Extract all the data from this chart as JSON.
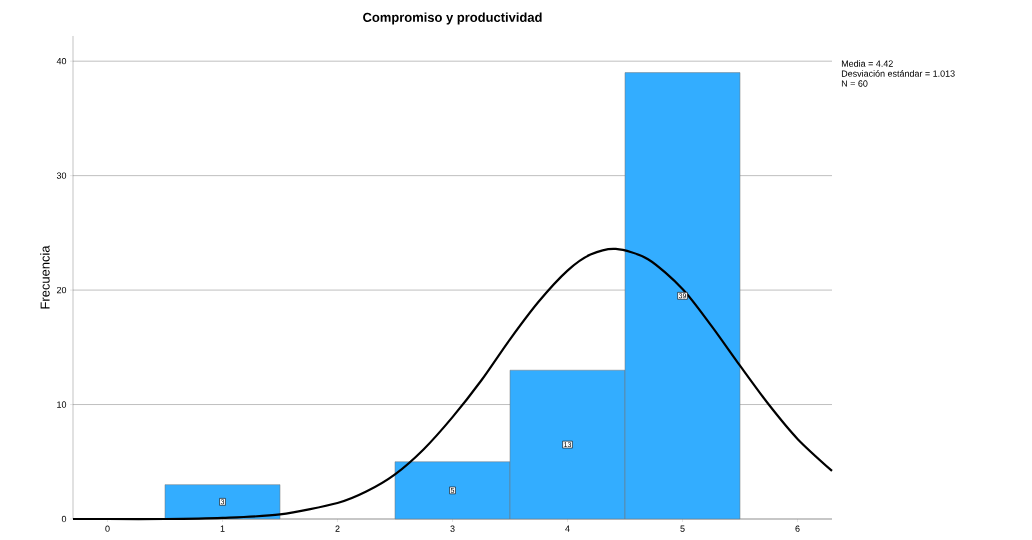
{
  "chart_data": {
    "type": "histogram",
    "title": "Compromiso y productividad",
    "ylabel": "Frecuencia",
    "bins": [
      0.5,
      1.5,
      2.5,
      3.5,
      4.5,
      5.5
    ],
    "values": [
      3,
      0,
      5,
      13,
      39
    ],
    "value_labels": [
      "3",
      null,
      "5",
      "13",
      "39"
    ],
    "color": "#33adff",
    "series": [
      {
        "type": "line",
        "color": "#000000",
        "x": [
          -0.3,
          0,
          0.5,
          1,
          1.5,
          2,
          2.25,
          2.5,
          2.75,
          3,
          3.25,
          3.5,
          3.75,
          4,
          4.2,
          4.42,
          4.7,
          5,
          5.25,
          5.5,
          5.75,
          6,
          6.3
        ],
        "values": [
          0,
          0,
          0,
          0.1,
          0.4,
          1.4,
          2.4,
          3.9,
          6.1,
          8.9,
          12.1,
          15.7,
          19,
          21.7,
          23.1,
          23.6,
          22.7,
          20.1,
          16.9,
          13.4,
          10,
          7,
          4.2
        ]
      }
    ],
    "xlim": [
      -0.3,
      6.3
    ],
    "ylim": [
      0,
      42.2
    ],
    "xticks": [
      0,
      1,
      2,
      3,
      4,
      5,
      6
    ],
    "yticks": [
      0,
      10,
      20,
      30,
      40
    ],
    "grid": "y",
    "annotations": [
      "Media = 4.42",
      "Desviación estándar = 1.013",
      "N = 60"
    ]
  }
}
